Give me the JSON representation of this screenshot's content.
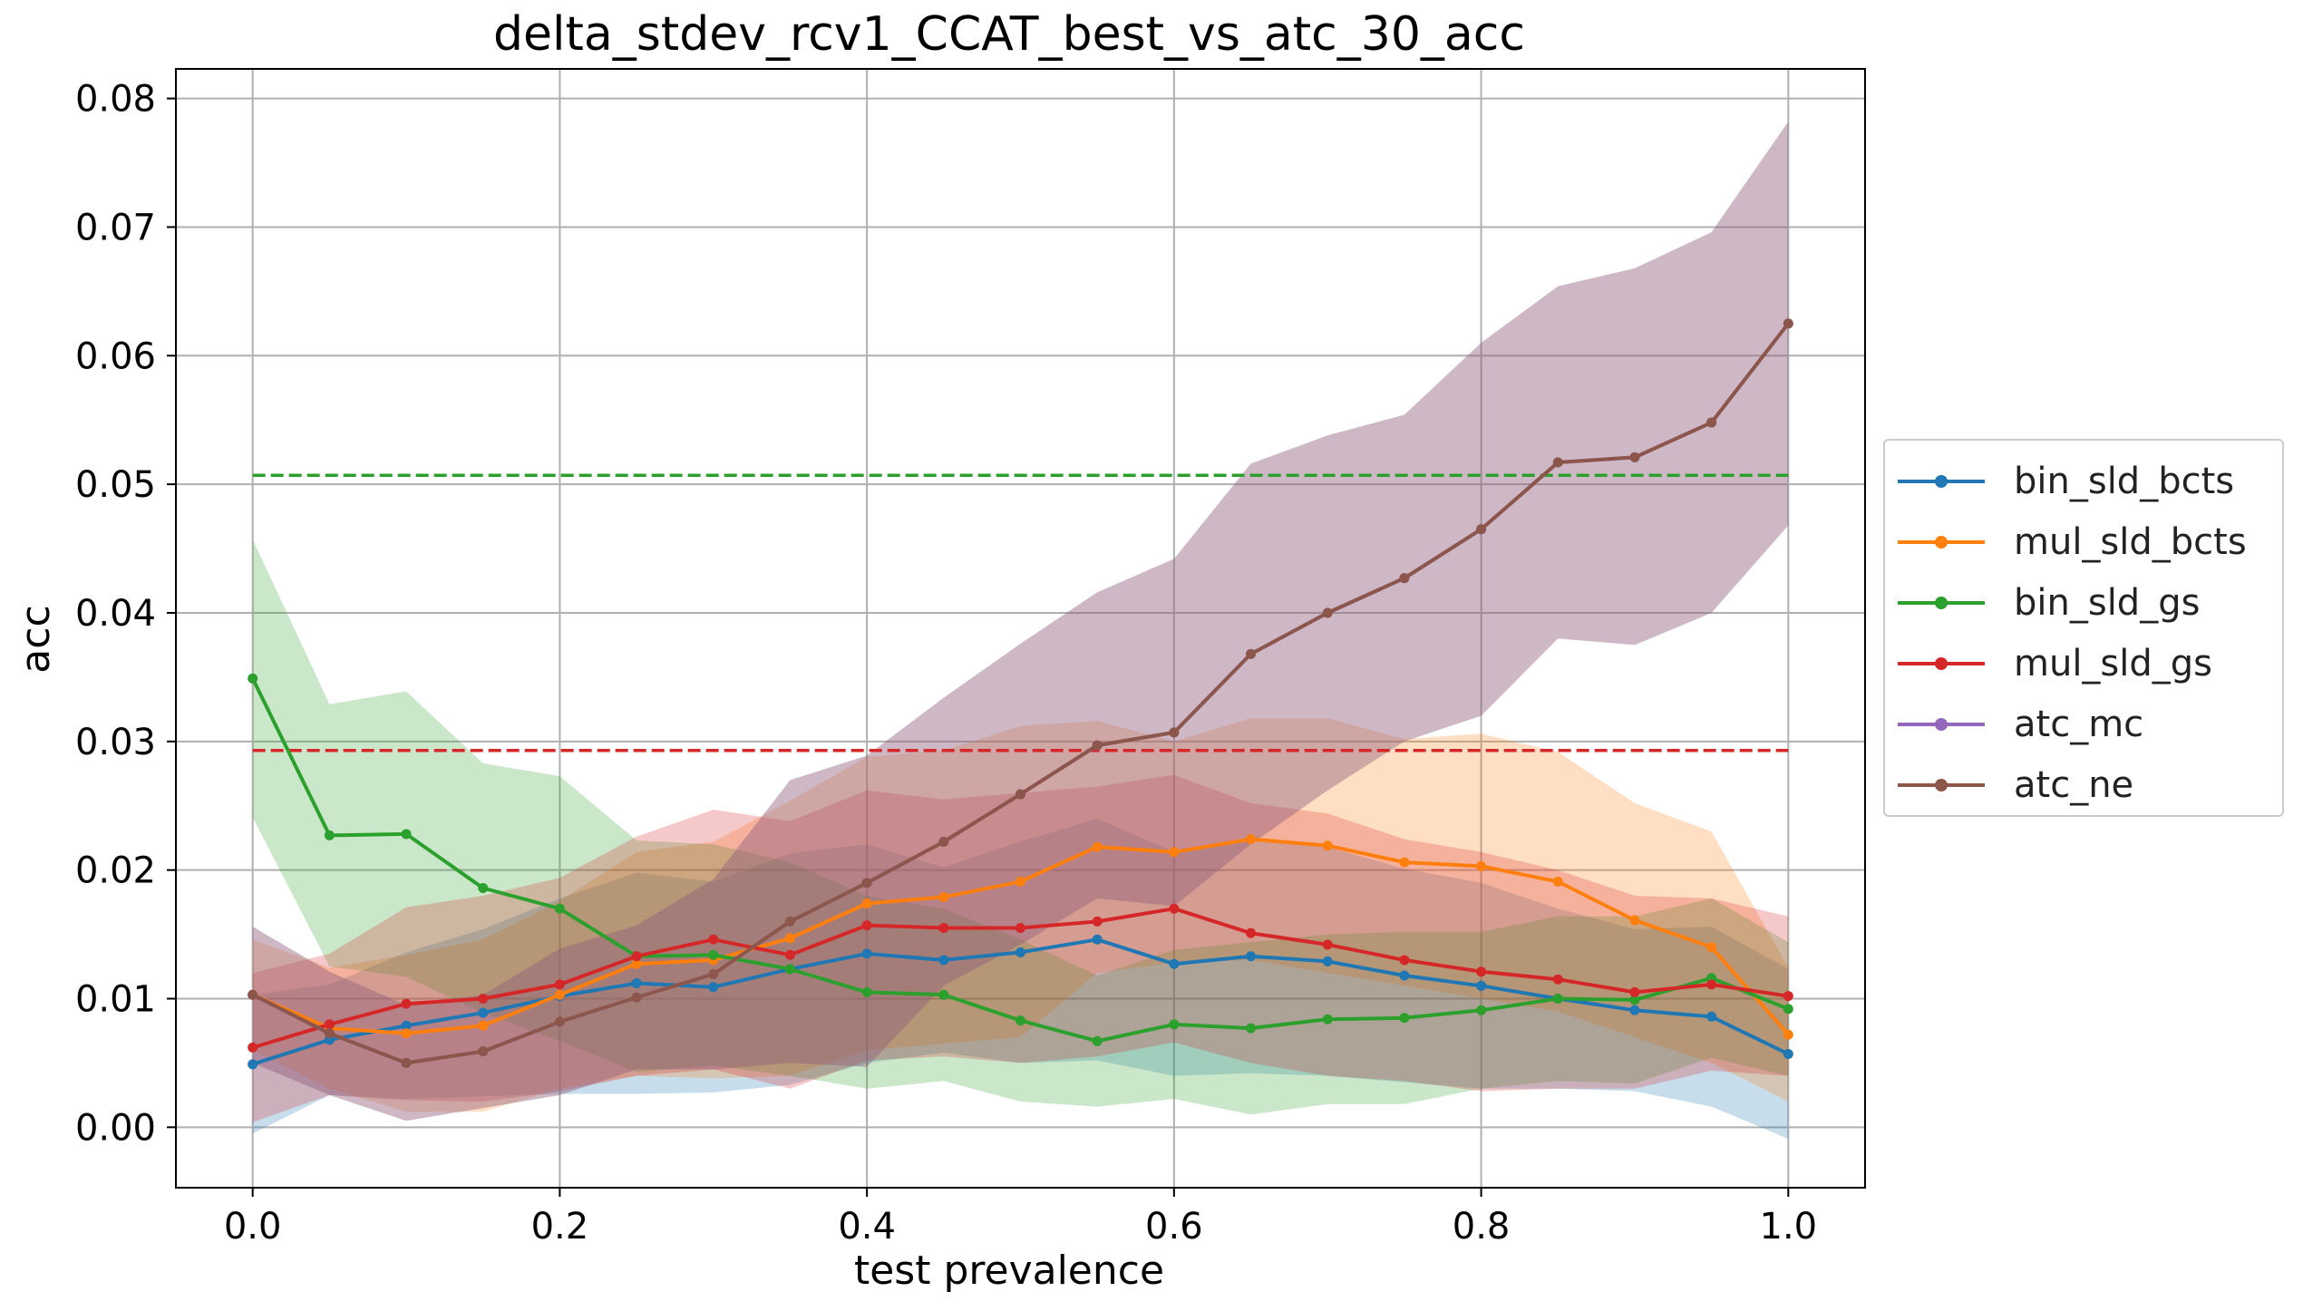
{
  "chart_data": {
    "type": "line",
    "title": "delta_stdev_rcv1_CCAT_best_vs_atc_30_acc",
    "xlabel": "test prevalence",
    "ylabel": "acc",
    "xlim": [
      -0.05,
      1.05
    ],
    "ylim": [
      -0.0047,
      0.0823
    ],
    "xticks": [
      0.0,
      0.2,
      0.4,
      0.6,
      0.8,
      1.0
    ],
    "xtick_labels": [
      "0.0",
      "0.2",
      "0.4",
      "0.6",
      "0.8",
      "1.0"
    ],
    "yticks": [
      0.0,
      0.01,
      0.02,
      0.03,
      0.04,
      0.05,
      0.06,
      0.07,
      0.08
    ],
    "ytick_labels": [
      "0.00",
      "0.01",
      "0.02",
      "0.03",
      "0.04",
      "0.05",
      "0.06",
      "0.07",
      "0.08"
    ],
    "grid": true,
    "legend_position": "right",
    "x": [
      0.0,
      0.05,
      0.1,
      0.15,
      0.2,
      0.25,
      0.3,
      0.35,
      0.4,
      0.45,
      0.5,
      0.55,
      0.6,
      0.65,
      0.7,
      0.75,
      0.8,
      0.85,
      0.9,
      0.95,
      1.0
    ],
    "series": [
      {
        "name": "bin_sld_bcts",
        "color": "#1f77b4",
        "values": [
          0.0049,
          0.0068,
          0.0079,
          0.0089,
          0.0102,
          0.0112,
          0.0109,
          0.0123,
          0.0135,
          0.013,
          0.0136,
          0.0146,
          0.0127,
          0.0133,
          0.0129,
          0.0118,
          0.011,
          0.01,
          0.0091,
          0.0086,
          0.0057
        ],
        "lower": [
          -0.0005,
          0.0025,
          0.0022,
          0.0024,
          0.0026,
          0.0026,
          0.0027,
          0.0033,
          0.005,
          0.0058,
          0.005,
          0.0052,
          0.004,
          0.0042,
          0.004,
          0.0035,
          0.003,
          0.003,
          0.0028,
          0.0016,
          -0.0009
        ],
        "upper": [
          0.0103,
          0.0111,
          0.0136,
          0.0154,
          0.0178,
          0.0198,
          0.0191,
          0.0213,
          0.022,
          0.0202,
          0.0222,
          0.024,
          0.0214,
          0.0224,
          0.0218,
          0.0201,
          0.019,
          0.017,
          0.0154,
          0.0156,
          0.0123
        ]
      },
      {
        "name": "mul_sld_bcts",
        "color": "#ff7f0e",
        "values": [
          0.0103,
          0.0077,
          0.0073,
          0.0079,
          0.0103,
          0.0127,
          0.013,
          0.0147,
          0.0174,
          0.0179,
          0.0191,
          0.0218,
          0.0214,
          0.0224,
          0.0219,
          0.0206,
          0.0203,
          0.0191,
          0.0161,
          0.014,
          0.0072
        ],
        "lower": [
          0.006,
          0.003,
          0.0012,
          0.0012,
          0.003,
          0.004,
          0.0038,
          0.004,
          0.006,
          0.0065,
          0.007,
          0.012,
          0.0128,
          0.013,
          0.012,
          0.011,
          0.01,
          0.009,
          0.007,
          0.005,
          0.002
        ],
        "upper": [
          0.0146,
          0.0124,
          0.0134,
          0.0146,
          0.0176,
          0.0214,
          0.0222,
          0.0254,
          0.0288,
          0.0293,
          0.0312,
          0.0316,
          0.03,
          0.0318,
          0.0318,
          0.0302,
          0.0306,
          0.0292,
          0.0252,
          0.023,
          0.0124
        ]
      },
      {
        "name": "bin_sld_gs",
        "color": "#2ca02c",
        "values": [
          0.0349,
          0.0227,
          0.0228,
          0.0186,
          0.017,
          0.0133,
          0.0134,
          0.0123,
          0.0105,
          0.0103,
          0.0083,
          0.0067,
          0.008,
          0.0077,
          0.0084,
          0.0085,
          0.0091,
          0.01,
          0.0099,
          0.0116,
          0.0092
        ],
        "lower": [
          0.0241,
          0.0125,
          0.0117,
          0.0089,
          0.0067,
          0.0043,
          0.0048,
          0.004,
          0.003,
          0.0036,
          0.002,
          0.0016,
          0.0022,
          0.001,
          0.0018,
          0.0018,
          0.003,
          0.0036,
          0.0034,
          0.0054,
          0.004
        ],
        "upper": [
          0.0457,
          0.0329,
          0.0339,
          0.0283,
          0.0273,
          0.0223,
          0.022,
          0.0206,
          0.018,
          0.017,
          0.0146,
          0.0118,
          0.0138,
          0.0144,
          0.015,
          0.0152,
          0.0152,
          0.0164,
          0.0164,
          0.0178,
          0.0144
        ]
      },
      {
        "name": "mul_sld_gs",
        "color": "#d62728",
        "values": [
          0.0062,
          0.008,
          0.0096,
          0.01,
          0.0111,
          0.0133,
          0.0146,
          0.0134,
          0.0157,
          0.0155,
          0.0155,
          0.016,
          0.017,
          0.0151,
          0.0142,
          0.013,
          0.0121,
          0.0115,
          0.0105,
          0.0111,
          0.0102
        ],
        "lower": [
          0.0004,
          0.0025,
          0.0021,
          0.002,
          0.0028,
          0.004,
          0.0045,
          0.003,
          0.0052,
          0.0055,
          0.005,
          0.0055,
          0.0066,
          0.005,
          0.004,
          0.0036,
          0.0028,
          0.003,
          0.003,
          0.0044,
          0.004
        ],
        "upper": [
          0.012,
          0.0135,
          0.0171,
          0.018,
          0.0194,
          0.0226,
          0.0247,
          0.0238,
          0.0262,
          0.0255,
          0.026,
          0.0265,
          0.0274,
          0.0252,
          0.0244,
          0.0224,
          0.0214,
          0.02,
          0.018,
          0.0178,
          0.0164
        ]
      },
      {
        "name": "atc_mc",
        "color": "#9467bd",
        "values": [
          0.0103,
          0.0073,
          0.005,
          0.0059,
          0.0082,
          0.0101,
          0.0119,
          0.016,
          0.019,
          0.0222,
          0.0259,
          0.0297,
          0.0307,
          0.0368,
          0.04,
          0.0427,
          0.0465,
          0.0517,
          0.0521,
          0.0548,
          0.0625
        ],
        "lower": [
          0.005,
          0.0025,
          0.0005,
          0.0015,
          0.0025,
          0.0045,
          0.0045,
          0.005,
          0.0047,
          0.011,
          0.0142,
          0.0178,
          0.0172,
          0.022,
          0.0262,
          0.03,
          0.032,
          0.038,
          0.0375,
          0.04,
          0.0468
        ],
        "upper": [
          0.0156,
          0.0121,
          0.0095,
          0.0103,
          0.0139,
          0.0157,
          0.0193,
          0.027,
          0.0289,
          0.0334,
          0.0376,
          0.0416,
          0.0442,
          0.0516,
          0.0538,
          0.0554,
          0.061,
          0.0654,
          0.0668,
          0.0696,
          0.0782
        ]
      },
      {
        "name": "atc_ne",
        "color": "#8c564b",
        "values": [
          0.0103,
          0.0073,
          0.005,
          0.0059,
          0.0082,
          0.0101,
          0.0119,
          0.016,
          0.019,
          0.0222,
          0.0259,
          0.0297,
          0.0307,
          0.0368,
          0.04,
          0.0427,
          0.0465,
          0.0517,
          0.0521,
          0.0548,
          0.0625
        ],
        "lower": [
          0.005,
          0.0025,
          0.0005,
          0.0015,
          0.0025,
          0.0045,
          0.0045,
          0.005,
          0.0047,
          0.011,
          0.0142,
          0.0178,
          0.0172,
          0.022,
          0.0262,
          0.03,
          0.032,
          0.038,
          0.0375,
          0.04,
          0.0468
        ],
        "upper": [
          0.0156,
          0.0121,
          0.0095,
          0.0103,
          0.0139,
          0.0157,
          0.0193,
          0.027,
          0.0289,
          0.0334,
          0.0376,
          0.0416,
          0.0442,
          0.0516,
          0.0538,
          0.0554,
          0.061,
          0.0654,
          0.0668,
          0.0696,
          0.0782
        ]
      }
    ],
    "reference_lines": [
      {
        "series": "bin_sld_gs",
        "y": 0.0507,
        "color": "#2ca02c",
        "style": "dashed"
      },
      {
        "series": "mul_sld_gs",
        "y": 0.0293,
        "color": "#d62728",
        "style": "dashed"
      }
    ]
  }
}
